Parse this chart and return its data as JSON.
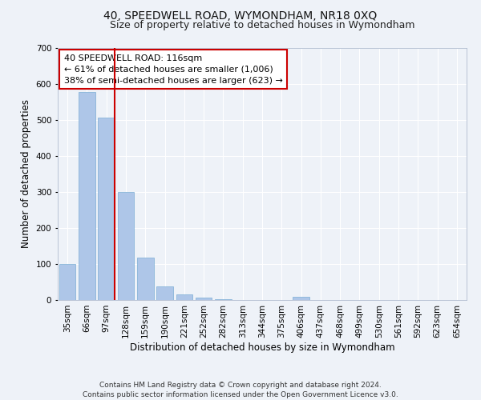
{
  "title": "40, SPEEDWELL ROAD, WYMONDHAM, NR18 0XQ",
  "subtitle": "Size of property relative to detached houses in Wymondham",
  "xlabel": "Distribution of detached houses by size in Wymondham",
  "ylabel": "Number of detached properties",
  "categories": [
    "35sqm",
    "66sqm",
    "97sqm",
    "128sqm",
    "159sqm",
    "190sqm",
    "221sqm",
    "252sqm",
    "282sqm",
    "313sqm",
    "344sqm",
    "375sqm",
    "406sqm",
    "437sqm",
    "468sqm",
    "499sqm",
    "530sqm",
    "561sqm",
    "592sqm",
    "623sqm",
    "654sqm"
  ],
  "values": [
    100,
    578,
    507,
    300,
    118,
    37,
    15,
    6,
    2,
    0,
    0,
    0,
    10,
    0,
    0,
    0,
    0,
    0,
    0,
    0,
    0
  ],
  "bar_color": "#aec6e8",
  "bar_edge_color": "#7aadd4",
  "background_color": "#eef2f8",
  "grid_color": "#ffffff",
  "vline_color": "#cc0000",
  "annotation_text": "40 SPEEDWELL ROAD: 116sqm\n← 61% of detached houses are smaller (1,006)\n38% of semi-detached houses are larger (623) →",
  "annotation_box_color": "#ffffff",
  "annotation_box_edge": "#cc0000",
  "ylim": [
    0,
    700
  ],
  "yticks": [
    0,
    100,
    200,
    300,
    400,
    500,
    600,
    700
  ],
  "footer": "Contains HM Land Registry data © Crown copyright and database right 2024.\nContains public sector information licensed under the Open Government Licence v3.0.",
  "title_fontsize": 10,
  "subtitle_fontsize": 9,
  "axis_label_fontsize": 8.5,
  "tick_fontsize": 7.5,
  "annotation_fontsize": 8,
  "footer_fontsize": 6.5
}
